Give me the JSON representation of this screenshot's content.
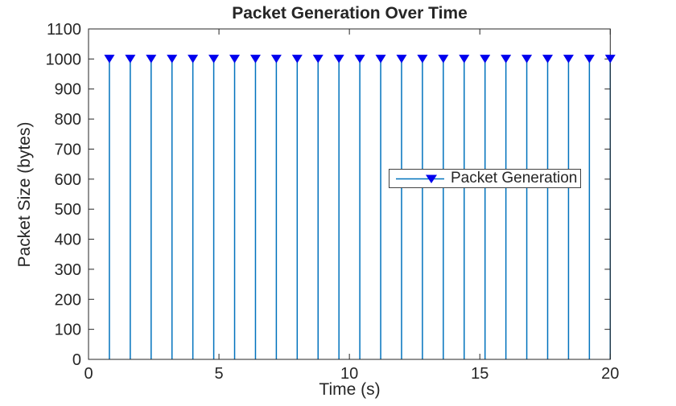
{
  "colors": {
    "stem_line": "#0072BD",
    "marker_fill": "#0000EE",
    "axis": "#262626",
    "text": "#262626",
    "background": "#FFFFFF",
    "legend_border": "#424242"
  },
  "chart_data": {
    "type": "stem",
    "title": "Packet Generation Over Time",
    "xlabel": "Time (s)",
    "ylabel": "Packet Size (bytes)",
    "xlim": [
      0,
      20
    ],
    "ylim": [
      0,
      1100
    ],
    "xticks": [
      0,
      5,
      10,
      15,
      20
    ],
    "yticks": [
      0,
      100,
      200,
      300,
      400,
      500,
      600,
      700,
      800,
      900,
      1000,
      1100
    ],
    "grid": false,
    "legend_position": "center-right-inside",
    "series": [
      {
        "name": "Packet Generation",
        "marker": "triangle-down",
        "line_color": "#0072BD",
        "marker_color": "#0000EE",
        "x": [
          0.8,
          1.6,
          2.4,
          3.2,
          4.0,
          4.8,
          5.6,
          6.4,
          7.2,
          8.0,
          8.8,
          9.6,
          10.4,
          11.2,
          12.0,
          12.8,
          13.6,
          14.4,
          15.2,
          16.0,
          16.8,
          17.6,
          18.4,
          19.2,
          20.0
        ],
        "y": [
          1000,
          1000,
          1000,
          1000,
          1000,
          1000,
          1000,
          1000,
          1000,
          1000,
          1000,
          1000,
          1000,
          1000,
          1000,
          1000,
          1000,
          1000,
          1000,
          1000,
          1000,
          1000,
          1000,
          1000,
          1000
        ]
      }
    ]
  }
}
